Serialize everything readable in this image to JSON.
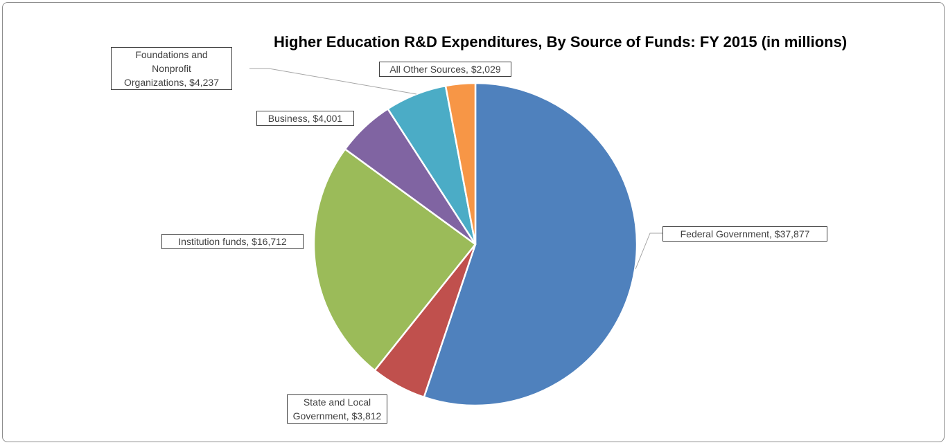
{
  "chart_data": {
    "type": "pie",
    "title": "Higher Education R&D Expenditures, By Source of Funds: FY 2015 (in millions)",
    "start_angle": "12 o'clock",
    "direction": "clockwise",
    "slices": [
      {
        "name": "Federal Government",
        "value": 37877,
        "label": "Federal Government, $37,877",
        "color": "#4F81BD"
      },
      {
        "name": "State and Local Government",
        "value": 3812,
        "label": "State and Local\nGovernment, $3,812",
        "color": "#C0504D"
      },
      {
        "name": "Institution funds",
        "value": 16712,
        "label": "Institution funds, $16,712",
        "color": "#9BBB59"
      },
      {
        "name": "Business",
        "value": 4001,
        "label": "Business, $4,001",
        "color": "#8064A2"
      },
      {
        "name": "Foundations and Nonprofit Organizations",
        "value": 4237,
        "label": "Foundations and\nNonprofit\nOrganizations, $4,237",
        "color": "#4BACC6"
      },
      {
        "name": "All Other Sources",
        "value": 2029,
        "label": "All Other Sources, $2,029",
        "color": "#F79646"
      }
    ]
  }
}
